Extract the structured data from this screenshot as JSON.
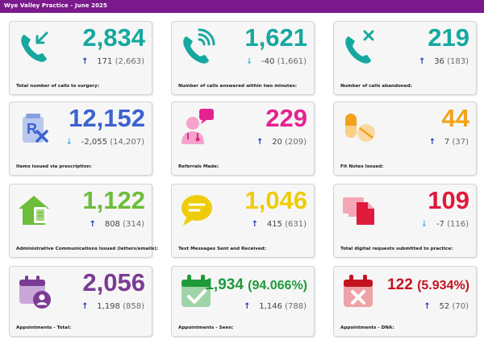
{
  "header": {
    "title": "Wye Valley Practice - June 2025"
  },
  "cards": [
    {
      "value": "2,834",
      "value_pct": "",
      "change": "171",
      "previous": "(2,663)",
      "direction": "up",
      "label": "Total number of calls to surgery:",
      "color": "#16a8a0",
      "icon": "phone-incoming-icon"
    },
    {
      "value": "1,621",
      "value_pct": "",
      "change": "-40",
      "previous": "(1,661)",
      "direction": "down",
      "label": "Number of calls answered within two minutes:",
      "color": "#16a8a0",
      "icon": "phone-answered-icon"
    },
    {
      "value": "219",
      "value_pct": "",
      "change": "36",
      "previous": "(183)",
      "direction": "up",
      "label": "Number of calls abandoned:",
      "color": "#16a8a0",
      "icon": "phone-abandoned-icon"
    },
    {
      "value": "12,152",
      "value_pct": "",
      "change": "-2,055",
      "previous": "(14,207)",
      "direction": "down",
      "label": "Items issued via prescription:",
      "color": "#3c62cf",
      "icon": "prescription-icon"
    },
    {
      "value": "229",
      "value_pct": "",
      "change": "20",
      "previous": "(209)",
      "direction": "up",
      "label": "Referrals Made:",
      "color": "#e4238e",
      "icon": "doctor-referral-icon"
    },
    {
      "value": "44",
      "value_pct": "",
      "change": "7",
      "previous": "(37)",
      "direction": "up",
      "label": "Fit Notes Issued:",
      "color": "#f3a21a",
      "icon": "pills-icon"
    },
    {
      "value": "1,122",
      "value_pct": "",
      "change": "808",
      "previous": "(314)",
      "direction": "up",
      "label": "Administrative Communications Issued (letters/emails):",
      "color": "#6cbd3a",
      "icon": "house-mail-icon"
    },
    {
      "value": "1,046",
      "value_pct": "",
      "change": "415",
      "previous": "(631)",
      "direction": "up",
      "label": "Text Messages Sent and Received:",
      "color": "#efcc0a",
      "icon": "chat-bubble-icon"
    },
    {
      "value": "109",
      "value_pct": "",
      "change": "-7",
      "previous": "(116)",
      "direction": "down",
      "label": "Total digital requests submitted to practice:",
      "color": "#e01a3c",
      "icon": "digital-request-icon"
    },
    {
      "value": "2,056",
      "value_pct": "",
      "change": "1,198",
      "previous": "(858)",
      "direction": "up",
      "label": "Appointments - Total:",
      "color": "#7b3b93",
      "icon": "calendar-user-icon"
    },
    {
      "value": "1,934",
      "value_pct": "(94.066%)",
      "change": "1,146",
      "previous": "(788)",
      "direction": "up",
      "label": "Appointments - Seen:",
      "color": "#1e9a3a",
      "icon": "calendar-check-icon"
    },
    {
      "value": "122",
      "value_pct": "(5.934%)",
      "change": "52",
      "previous": "(70)",
      "direction": "up",
      "label": "Appointments - DNA:",
      "color": "#c4121f",
      "icon": "calendar-cross-icon"
    }
  ],
  "arrows": {
    "up": "🡑",
    "down": "🡓"
  }
}
